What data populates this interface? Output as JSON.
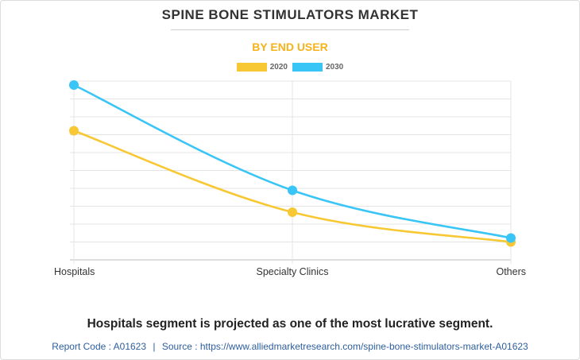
{
  "title": "SPINE BONE STIMULATORS MARKET",
  "subtitle": "BY END USER",
  "headline": "Hospitals segment is projected as one of the most lucrative segment.",
  "source": {
    "report_code": "Report Code : A01623",
    "separator": "|",
    "url": "Source : https://www.alliedmarketresearch.com/spine-bone-stimulators-market-A01623"
  },
  "colors": {
    "2020": "#f7c833",
    "2030": "#39c5f5",
    "subtitle": "#f6b21a",
    "grid": "#e4e4e4"
  },
  "chart_data": {
    "type": "line",
    "categories": [
      "Hospitals",
      "Specialty Clinics",
      "Others"
    ],
    "series": [
      {
        "name": "2020",
        "values": [
          0.65,
          0.24,
          0.09
        ]
      },
      {
        "name": "2030",
        "values": [
          0.88,
          0.35,
          0.11
        ]
      }
    ],
    "ylim": [
      0,
      0.9
    ],
    "y_tick_labels_visible": false,
    "grid": true,
    "legend": "top-center",
    "smooth": true
  }
}
